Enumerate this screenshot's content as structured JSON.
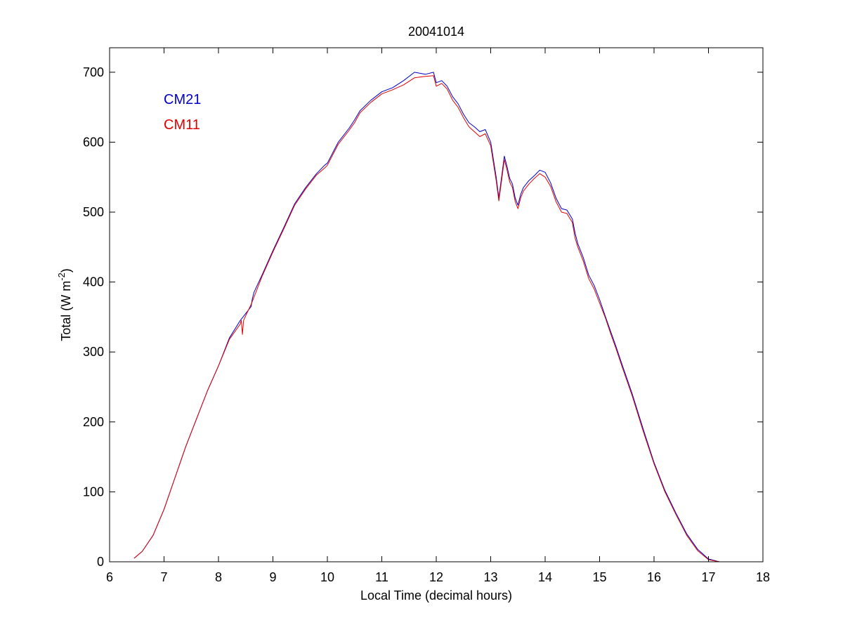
{
  "chart_data": {
    "type": "line",
    "title": "20041014",
    "xlabel": "Local Time (decimal hours)",
    "ylabel_main": "Total (W m",
    "ylabel_sup": "-2",
    "ylabel_close": ")",
    "xlim": [
      6,
      18
    ],
    "ylim": [
      0,
      735
    ],
    "xticks": [
      6,
      7,
      8,
      9,
      10,
      11,
      12,
      13,
      14,
      15,
      16,
      17,
      18
    ],
    "yticks": [
      0,
      100,
      200,
      300,
      400,
      500,
      600,
      700
    ],
    "grid": false,
    "legend_placement": "top-left",
    "series": [
      {
        "name": "CM21",
        "color": "#0000c8",
        "x": [
          6.45,
          6.6,
          6.8,
          7.0,
          7.2,
          7.4,
          7.6,
          7.8,
          8.0,
          8.2,
          8.4,
          8.5,
          8.6,
          8.62,
          8.65,
          8.8,
          9.0,
          9.2,
          9.4,
          9.6,
          9.8,
          9.95,
          10.0,
          10.2,
          10.4,
          10.5,
          10.6,
          10.8,
          11.0,
          11.2,
          11.4,
          11.6,
          11.8,
          11.95,
          12.0,
          12.1,
          12.2,
          12.3,
          12.4,
          12.5,
          12.6,
          12.7,
          12.8,
          12.9,
          13.0,
          13.05,
          13.1,
          13.15,
          13.2,
          13.25,
          13.3,
          13.35,
          13.4,
          13.45,
          13.5,
          13.55,
          13.6,
          13.65,
          13.7,
          13.8,
          13.9,
          14.0,
          14.1,
          14.2,
          14.3,
          14.4,
          14.5,
          14.55,
          14.6,
          14.7,
          14.8,
          14.9,
          15.0,
          15.1,
          15.2,
          15.3,
          15.4,
          15.6,
          15.8,
          16.0,
          16.2,
          16.4,
          16.6,
          16.8,
          17.0,
          17.2,
          17.4,
          17.5
        ],
        "y": [
          5,
          15,
          38,
          75,
          120,
          165,
          205,
          245,
          280,
          320,
          345,
          355,
          365,
          375,
          385,
          410,
          445,
          478,
          512,
          535,
          555,
          567,
          570,
          600,
          620,
          632,
          645,
          660,
          672,
          678,
          688,
          700,
          697,
          700,
          685,
          688,
          680,
          665,
          655,
          640,
          628,
          622,
          615,
          618,
          600,
          575,
          550,
          520,
          550,
          580,
          565,
          548,
          540,
          520,
          510,
          525,
          535,
          540,
          545,
          552,
          560,
          557,
          542,
          520,
          505,
          503,
          490,
          470,
          455,
          435,
          410,
          395,
          375,
          352,
          330,
          308,
          285,
          240,
          190,
          142,
          102,
          70,
          40,
          18,
          4,
          0,
          0,
          0
        ]
      },
      {
        "name": "CM11",
        "color": "#e00000",
        "x": [
          6.45,
          6.6,
          6.8,
          7.0,
          7.2,
          7.4,
          7.6,
          7.8,
          8.0,
          8.2,
          8.4,
          8.42,
          8.44,
          8.46,
          8.5,
          8.6,
          8.8,
          9.0,
          9.2,
          9.4,
          9.6,
          9.8,
          9.95,
          10.0,
          10.2,
          10.4,
          10.5,
          10.6,
          10.8,
          11.0,
          11.2,
          11.4,
          11.6,
          11.8,
          11.95,
          12.0,
          12.1,
          12.2,
          12.3,
          12.4,
          12.5,
          12.6,
          12.7,
          12.8,
          12.9,
          13.0,
          13.05,
          13.1,
          13.15,
          13.2,
          13.25,
          13.3,
          13.35,
          13.4,
          13.45,
          13.5,
          13.55,
          13.6,
          13.65,
          13.7,
          13.8,
          13.9,
          14.0,
          14.1,
          14.2,
          14.3,
          14.4,
          14.5,
          14.55,
          14.6,
          14.7,
          14.8,
          14.9,
          15.0,
          15.1,
          15.2,
          15.3,
          15.4,
          15.6,
          15.8,
          16.0,
          16.2,
          16.4,
          16.6,
          16.8,
          17.0,
          17.2,
          17.4,
          17.5
        ],
        "y": [
          5,
          15,
          38,
          75,
          120,
          165,
          205,
          245,
          280,
          318,
          340,
          345,
          325,
          345,
          352,
          368,
          408,
          443,
          476,
          510,
          533,
          553,
          563,
          567,
          597,
          617,
          628,
          642,
          657,
          669,
          675,
          682,
          692,
          694,
          695,
          680,
          684,
          676,
          660,
          650,
          635,
          622,
          615,
          608,
          612,
          595,
          570,
          545,
          516,
          545,
          575,
          560,
          543,
          535,
          515,
          505,
          520,
          530,
          535,
          540,
          548,
          555,
          550,
          537,
          515,
          500,
          498,
          485,
          463,
          450,
          430,
          405,
          390,
          370,
          350,
          327,
          305,
          282,
          237,
          187,
          140,
          100,
          68,
          38,
          16,
          3,
          0,
          0,
          0
        ]
      }
    ]
  }
}
